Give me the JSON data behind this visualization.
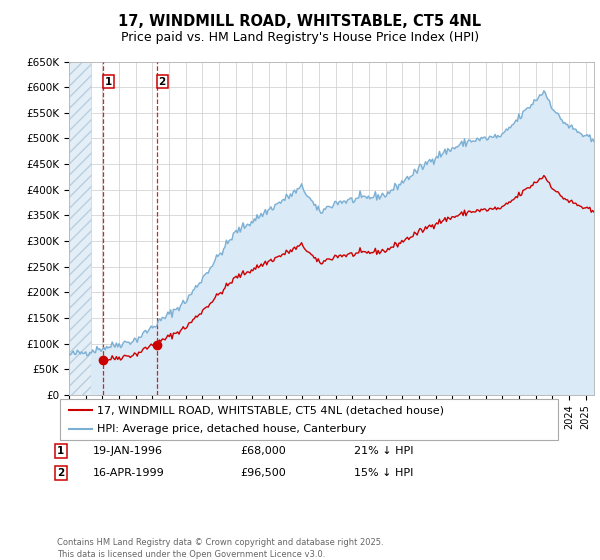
{
  "title": "17, WINDMILL ROAD, WHITSTABLE, CT5 4NL",
  "subtitle": "Price paid vs. HM Land Registry's House Price Index (HPI)",
  "ylim": [
    0,
    650000
  ],
  "xlim_start": 1994.0,
  "xlim_end": 2025.5,
  "yticks": [
    0,
    50000,
    100000,
    150000,
    200000,
    250000,
    300000,
    350000,
    400000,
    450000,
    500000,
    550000,
    600000,
    650000
  ],
  "ytick_labels": [
    "£0",
    "£50K",
    "£100K",
    "£150K",
    "£200K",
    "£250K",
    "£300K",
    "£350K",
    "£400K",
    "£450K",
    "£500K",
    "£550K",
    "£600K",
    "£650K"
  ],
  "purchase1_x": 1996.05,
  "purchase1_y": 68000,
  "purchase1_label": "19-JAN-1996",
  "purchase1_price": "£68,000",
  "purchase1_hpi": "21% ↓ HPI",
  "purchase2_x": 1999.29,
  "purchase2_y": 96500,
  "purchase2_label": "16-APR-1999",
  "purchase2_price": "£96,500",
  "purchase2_hpi": "15% ↓ HPI",
  "hpi_color": "#7bafd4",
  "price_color": "#cc0000",
  "hpi_fill_color": "#daeaf7",
  "background_color": "#ffffff",
  "grid_color": "#cccccc",
  "legend_label_price": "17, WINDMILL ROAD, WHITSTABLE, CT5 4NL (detached house)",
  "legend_label_hpi": "HPI: Average price, detached house, Canterbury",
  "footer": "Contains HM Land Registry data © Crown copyright and database right 2025.\nThis data is licensed under the Open Government Licence v3.0.",
  "title_fontsize": 10.5,
  "subtitle_fontsize": 9,
  "tick_fontsize": 7.5,
  "legend_fontsize": 8
}
